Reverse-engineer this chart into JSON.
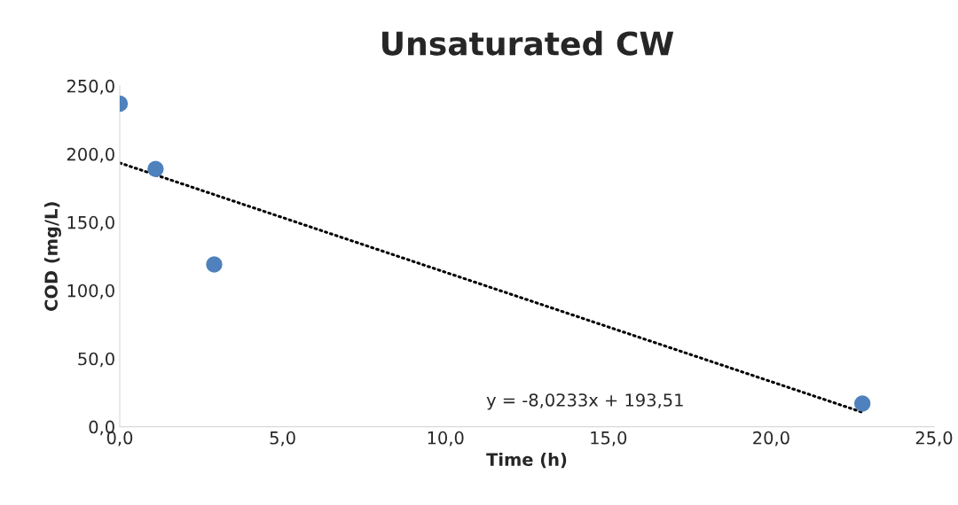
{
  "chart_data": {
    "type": "scatter",
    "title": "Unsaturated CW",
    "xlabel": "Time (h)",
    "ylabel": "COD (mg/L)",
    "series": [
      {
        "color": "#4f81bd",
        "x": [
          0.0,
          1.1,
          2.9,
          22.8
        ],
        "values": [
          237,
          189,
          119,
          17
        ],
        "marker": "circle"
      },
      {
        "type": "line",
        "color": "#000000",
        "x": [
          0.0,
          22.8
        ],
        "values": [
          193.5,
          10.6
        ],
        "line_style": "dotted",
        "marker": "none"
      }
    ],
    "xlim": [
      0,
      25
    ],
    "xticks": [
      {
        "value": 0,
        "label": "0,0"
      },
      {
        "value": 5,
        "label": "5,0"
      },
      {
        "value": 10,
        "label": "10,0"
      },
      {
        "value": 15,
        "label": "15,0"
      },
      {
        "value": 20,
        "label": "20,0"
      },
      {
        "value": 25,
        "label": "25,0"
      }
    ],
    "ylim": [
      0,
      250
    ],
    "yticks": [
      {
        "value": 0,
        "label": "0,0"
      },
      {
        "value": 50,
        "label": "50,0"
      },
      {
        "value": 100,
        "label": "100,0"
      },
      {
        "value": 150,
        "label": "150,0"
      },
      {
        "value": 200,
        "label": "200,0"
      },
      {
        "value": 250,
        "label": "250,0"
      }
    ],
    "grid": false,
    "legend": false,
    "annotations": [
      "y = -8,0233x + 193,51"
    ]
  }
}
